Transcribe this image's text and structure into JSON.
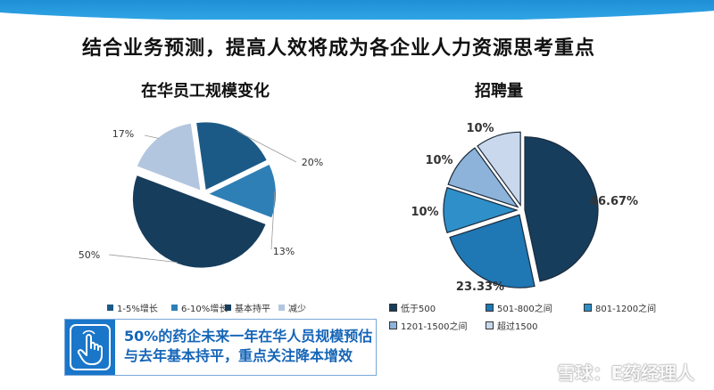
{
  "page": {
    "title": "结合业务预测，提高人效将成为各企业人力资源思考重点"
  },
  "chart_data": [
    {
      "type": "pie",
      "title": "在华员工规模变化",
      "categories": [
        "1-5%增长",
        "6-10%增长",
        "基本持平",
        "减少"
      ],
      "values": [
        20,
        13,
        50,
        17
      ],
      "labels": [
        "20%",
        "13%",
        "50%",
        "17%"
      ],
      "colors": [
        "#1b5a86",
        "#2e7fb5",
        "#173d5c",
        "#b3c6df"
      ],
      "legend": "bottom"
    },
    {
      "type": "pie",
      "title": "招聘量",
      "categories": [
        "低于500",
        "501-800之间",
        "801-1200之间",
        "1201-1500之间",
        "超过1500"
      ],
      "values": [
        46.67,
        23.33,
        10,
        10,
        10
      ],
      "labels": [
        "46.67%",
        "23.33%",
        "10%",
        "10%",
        "10%"
      ],
      "colors": [
        "#173d5c",
        "#1f77b4",
        "#2f8fc8",
        "#8db3da",
        "#c9d8ec"
      ],
      "legend": "bottom"
    }
  ],
  "callout": {
    "line1": "50%的药企未来一年在华人员规模预估",
    "line2": "与去年基本持平，重点关注降本增效",
    "icon": "hand-pointer-icon"
  },
  "watermark": "雪球：E药经理人"
}
